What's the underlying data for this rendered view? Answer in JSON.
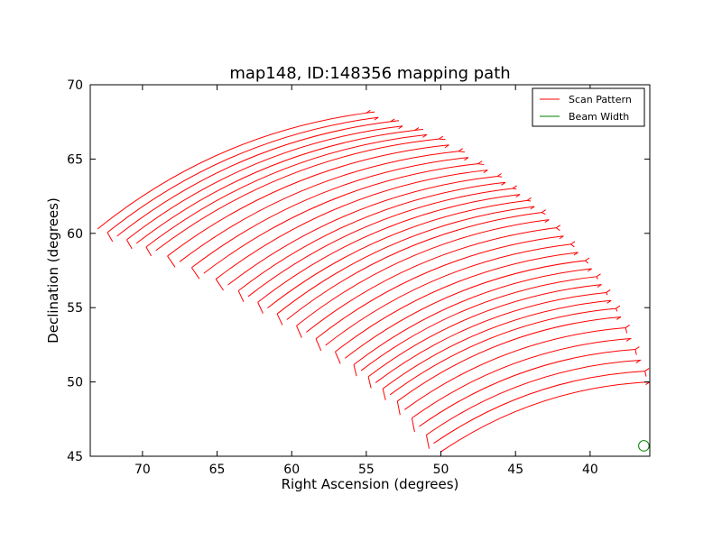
{
  "chart_data": {
    "type": "line",
    "title": "map148, ID:148356 mapping path",
    "xlabel": "Right Ascension (degrees)",
    "ylabel": "Declination (degrees)",
    "xlim": [
      73.5,
      36.0
    ],
    "ylim": [
      45,
      70
    ],
    "x_inverted": true,
    "xticks": [
      70,
      65,
      60,
      55,
      50,
      45,
      40
    ],
    "yticks": [
      45,
      50,
      55,
      60,
      65,
      70
    ],
    "grid": false,
    "legend_position": "top-right",
    "series": [
      {
        "name": "Scan Pattern",
        "color": "#ff0000",
        "style": "line",
        "description_points": {
          "num_scans": 38,
          "start_outer": [
            [
              73.0,
              60.3
            ],
            [
              69.0,
              58.8
            ],
            [
              64.0,
              56.4
            ],
            [
              60.0,
              54.0
            ],
            [
              56.0,
              51.3
            ],
            [
              53.0,
              48.8
            ],
            [
              50.0,
              45.3
            ]
          ],
          "end_outer": [
            [
              55.0,
              68.1
            ],
            [
              50.0,
              66.3
            ],
            [
              46.0,
              63.7
            ],
            [
              43.0,
              61.2
            ],
            [
              40.0,
              57.8
            ],
            [
              38.0,
              54.5
            ],
            [
              36.0,
              50.0
            ]
          ]
        }
      },
      {
        "name": "Beam Width",
        "color": "#008000",
        "style": "circle",
        "center": [
          36.4,
          45.7
        ],
        "radius_deg": 0.35
      }
    ]
  }
}
